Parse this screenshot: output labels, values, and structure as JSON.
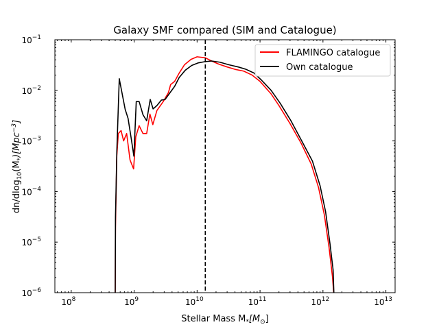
{
  "chart_data": {
    "type": "line",
    "title": "Galaxy SMF compared (SIM and Catalogue)",
    "xlabel": {
      "text": "Stellar Mass M",
      "sub": "*",
      "unit": "[M",
      "unit_sub": "⊙",
      "unit_end": "]"
    },
    "ylabel": {
      "text": "dn/dlog",
      "sub": "10",
      "mid": "(M",
      "mid_sub": "*",
      "end": ")[Mpc",
      "sup": "−3",
      "close": "]"
    },
    "x_scale": "log",
    "y_scale": "log",
    "xlim": [
      55000000,
      14000000000000
    ],
    "ylim": [
      1e-06,
      0.1
    ],
    "x_ticks": [
      {
        "value": 100000000,
        "base": "10",
        "exp": "8"
      },
      {
        "value": 1000000000,
        "base": "10",
        "exp": "9"
      },
      {
        "value": 10000000000,
        "base": "10",
        "exp": "10"
      },
      {
        "value": 100000000000,
        "base": "10",
        "exp": "11"
      },
      {
        "value": 1000000000000,
        "base": "10",
        "exp": "12"
      },
      {
        "value": 10000000000000,
        "base": "10",
        "exp": "13"
      }
    ],
    "y_ticks": [
      {
        "value": 1e-06,
        "base": "10",
        "exp": "−6"
      },
      {
        "value": 1e-05,
        "base": "10",
        "exp": "−5"
      },
      {
        "value": 0.0001,
        "base": "10",
        "exp": "−4"
      },
      {
        "value": 0.001,
        "base": "10",
        "exp": "−3"
      },
      {
        "value": 0.01,
        "base": "10",
        "exp": "−2"
      },
      {
        "value": 0.1,
        "base": "10",
        "exp": "−1"
      }
    ],
    "vline": {
      "x": 13500000000,
      "style": "dashed",
      "color": "#000000"
    },
    "legend_position": "top-right",
    "grid": false,
    "series": [
      {
        "name": "FLAMINGO catalogue",
        "color": "#ff0000",
        "points": [
          [
            500000000,
            1e-06
          ],
          [
            505000000,
            2e-05
          ],
          [
            530000000,
            0.0005
          ],
          [
            560000000,
            0.0014
          ],
          [
            620000000,
            0.0016
          ],
          [
            680000000,
            0.001
          ],
          [
            760000000,
            0.0014
          ],
          [
            860000000,
            0.00042
          ],
          [
            980000000,
            0.00028
          ],
          [
            1060000000,
            0.0012
          ],
          [
            1200000000,
            0.002
          ],
          [
            1380000000,
            0.0014
          ],
          [
            1580000000,
            0.0014
          ],
          [
            1780000000,
            0.0034
          ],
          [
            1980000000,
            0.0021
          ],
          [
            2300000000,
            0.004
          ],
          [
            2900000000,
            0.006
          ],
          [
            3500000000,
            0.009
          ],
          [
            3800000000,
            0.013
          ],
          [
            4400000000,
            0.015
          ],
          [
            5200000000,
            0.022
          ],
          [
            6300000000,
            0.032
          ],
          [
            8000000000,
            0.041
          ],
          [
            10000000000,
            0.046
          ],
          [
            13500000000,
            0.044
          ],
          [
            17000000000,
            0.038
          ],
          [
            22000000000,
            0.033
          ],
          [
            30000000000,
            0.029
          ],
          [
            40000000000,
            0.026
          ],
          [
            55000000000,
            0.024
          ],
          [
            75000000000,
            0.02
          ],
          [
            100000000000,
            0.015
          ],
          [
            150000000000,
            0.0085
          ],
          [
            200000000000,
            0.005
          ],
          [
            300000000000,
            0.0022
          ],
          [
            450000000000,
            0.0009
          ],
          [
            650000000000,
            0.00035
          ],
          [
            850000000000,
            0.00012
          ],
          [
            1050000000000,
            3.5e-05
          ],
          [
            1250000000000,
            7.8e-06
          ],
          [
            1420000000000,
            2e-06
          ],
          [
            1480000000000,
            1e-06
          ]
        ]
      },
      {
        "name": "Own catalogue",
        "color": "#000000",
        "points": [
          [
            500000000,
            1e-06
          ],
          [
            505000000,
            3e-05
          ],
          [
            530000000,
            0.0006
          ],
          [
            580000000,
            0.017
          ],
          [
            640000000,
            0.009
          ],
          [
            720000000,
            0.0042
          ],
          [
            800000000,
            0.0028
          ],
          [
            900000000,
            0.0011
          ],
          [
            990000000,
            0.0005
          ],
          [
            1080000000,
            0.006
          ],
          [
            1200000000,
            0.006
          ],
          [
            1380000000,
            0.0033
          ],
          [
            1580000000,
            0.0025
          ],
          [
            1800000000,
            0.0066
          ],
          [
            2000000000,
            0.0043
          ],
          [
            2300000000,
            0.005
          ],
          [
            2700000000,
            0.0064
          ],
          [
            3100000000,
            0.0066
          ],
          [
            3600000000,
            0.0085
          ],
          [
            4400000000,
            0.012
          ],
          [
            5200000000,
            0.018
          ],
          [
            6500000000,
            0.025
          ],
          [
            8200000000,
            0.031
          ],
          [
            10500000000,
            0.035
          ],
          [
            13500000000,
            0.037
          ],
          [
            17000000000,
            0.038
          ],
          [
            23000000000,
            0.036
          ],
          [
            32000000000,
            0.032
          ],
          [
            45000000000,
            0.029
          ],
          [
            60000000000,
            0.026
          ],
          [
            80000000000,
            0.022
          ],
          [
            105000000000,
            0.016
          ],
          [
            150000000000,
            0.01
          ],
          [
            210000000000,
            0.0055
          ],
          [
            310000000000,
            0.0025
          ],
          [
            460000000000,
            0.001
          ],
          [
            680000000000,
            0.0004
          ],
          [
            900000000000,
            0.00013
          ],
          [
            1100000000000,
            4e-05
          ],
          [
            1290000000000,
            9.5e-06
          ],
          [
            1450000000000,
            2.8e-06
          ],
          [
            1490000000000,
            1e-06
          ]
        ]
      }
    ]
  }
}
